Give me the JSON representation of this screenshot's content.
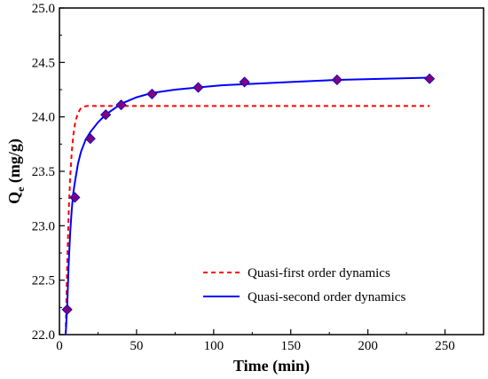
{
  "chart_data": {
    "type": "line",
    "xlabel": "Time (min)",
    "ylabel_main": "Q",
    "ylabel_sub": "e",
    "ylabel_unit": " (mg/g)",
    "xlim": [
      0,
      275
    ],
    "ylim": [
      22.0,
      25.0
    ],
    "x_ticks": [
      0,
      50,
      100,
      150,
      200,
      250
    ],
    "y_ticks": [
      22.0,
      22.5,
      23.0,
      23.5,
      24.0,
      24.5,
      25.0
    ],
    "x_tick_labels": [
      "0",
      "50",
      "100",
      "150",
      "200",
      "250"
    ],
    "y_tick_labels": [
      "22.0",
      "22.5",
      "23.0",
      "23.5",
      "24.0",
      "24.5",
      "25.0"
    ],
    "grid": false,
    "legend_position": "bottom-right",
    "series": [
      {
        "name": "Quasi-first order dynamics",
        "kind": "fit",
        "style": "dashed",
        "color": "#ff0000",
        "x": [
          4,
          5,
          6,
          7,
          8,
          9,
          10,
          11,
          12,
          13,
          14,
          16,
          18,
          20,
          30,
          60,
          120,
          180,
          240
        ],
        "y": [
          22.0,
          22.62,
          23.12,
          23.46,
          23.68,
          23.83,
          23.93,
          23.99,
          24.03,
          24.06,
          24.08,
          24.095,
          24.1,
          24.1,
          24.1,
          24.1,
          24.1,
          24.1,
          24.1
        ]
      },
      {
        "name": "Quasi-second order dynamics",
        "kind": "fit",
        "style": "solid",
        "color": "#0000ff",
        "x": [
          4,
          5,
          6,
          7,
          8,
          9,
          10,
          12,
          14,
          17,
          20,
          25,
          30,
          40,
          50,
          60,
          75,
          90,
          105,
          120,
          150,
          180,
          210,
          240
        ],
        "y": [
          21.9,
          22.25,
          22.65,
          22.95,
          23.15,
          23.3,
          23.4,
          23.57,
          23.68,
          23.79,
          23.86,
          23.95,
          24.02,
          24.12,
          24.18,
          24.22,
          24.25,
          24.27,
          24.29,
          24.3,
          24.32,
          24.34,
          24.35,
          24.36
        ]
      },
      {
        "kind": "points",
        "marker": "diamond",
        "color": "#800080",
        "stroke": "#0000cc",
        "x": [
          5,
          10,
          20,
          30,
          40,
          60,
          90,
          120,
          180,
          240
        ],
        "y": [
          22.23,
          23.26,
          23.8,
          24.02,
          24.11,
          24.21,
          24.27,
          24.32,
          24.34,
          24.35
        ]
      }
    ]
  }
}
